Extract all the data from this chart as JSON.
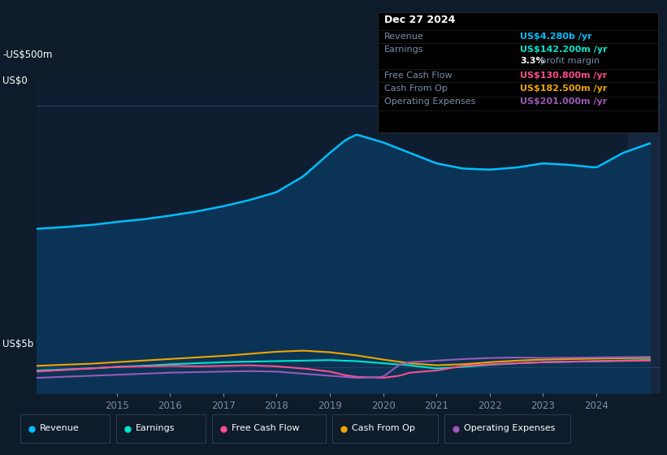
{
  "bg_color": "#0d1b2a",
  "panel_bg": "#0d1b2a",
  "chart_bg": "#0e1e30",
  "tooltip_bg": "#000000",
  "ylabel_top": "US$5b",
  "ylabel_zero": "US$0",
  "ylabel_neg": "-US$500m",
  "x_labels": [
    "2015",
    "2016",
    "2017",
    "2018",
    "2019",
    "2020",
    "2021",
    "2022",
    "2023",
    "2024"
  ],
  "ylim": [
    -500,
    5500
  ],
  "legend_items": [
    {
      "label": "Revenue",
      "color": "#00bfff"
    },
    {
      "label": "Earnings",
      "color": "#00e5cc"
    },
    {
      "label": "Free Cash Flow",
      "color": "#ff4d8d"
    },
    {
      "label": "Cash From Op",
      "color": "#f0a500"
    },
    {
      "label": "Operating Expenses",
      "color": "#9b59b6"
    }
  ],
  "tooltip": {
    "date": "Dec 27 2024",
    "Revenue": "US$4.280b",
    "Revenue_color": "#00bfff",
    "Earnings": "US$142.200m",
    "Earnings_color": "#00e5cc",
    "profit_margin": "3.3%",
    "Free_Cash_Flow": "US$130.800m",
    "Free_Cash_Flow_color": "#ff4d8d",
    "Cash_From_Op": "US$182.500m",
    "Cash_From_Op_color": "#f0a500",
    "Operating_Expenses": "US$201.000m",
    "Operating_Expenses_color": "#9b59b6"
  },
  "revenue_color": "#00bfff",
  "earnings_color": "#00e5cc",
  "free_cash_flow_color": "#ff4d8d",
  "cash_from_op_color": "#f0a500",
  "operating_expenses_color": "#9b59b6",
  "revenue_fill_color": "#0a3355",
  "grid_color": "#1e3a5a",
  "text_color": "#7a8fa8",
  "highlight_color": "#162840"
}
